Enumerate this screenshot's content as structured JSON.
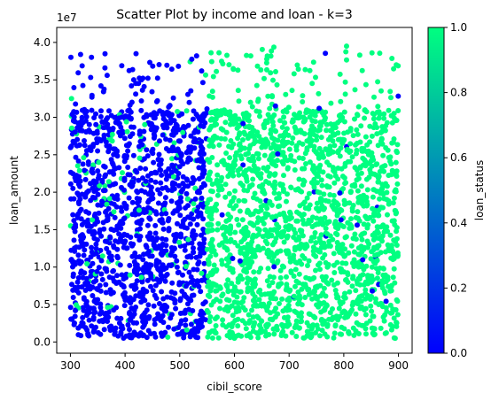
{
  "chart_data": {
    "type": "scatter",
    "title": "Scatter Plot by income and loan - k=3",
    "xlabel": "cibil_score",
    "ylabel": "loan_amount",
    "y_offset_text": "1e7",
    "colorbar_label": "loan_status",
    "xlim": [
      275,
      925
    ],
    "ylim": [
      -0.15,
      4.2
    ],
    "x_ticks": [
      300,
      400,
      500,
      600,
      700,
      800,
      900
    ],
    "y_ticks": [
      0.0,
      0.5,
      1.0,
      1.5,
      2.0,
      2.5,
      3.0,
      3.5,
      4.0
    ],
    "y_tick_labels": [
      "0.0",
      "0.5",
      "1.0",
      "1.5",
      "2.0",
      "2.5",
      "3.0",
      "3.5",
      "4.0"
    ],
    "colorbar_ticks": [
      "0.0",
      "0.2",
      "0.4",
      "0.6",
      "0.8",
      "1.0"
    ],
    "colormap": {
      "low": "#0000ff",
      "high": "#00ff80",
      "name": "winter"
    },
    "clusters": [
      {
        "loan_status": 0,
        "x_range": [
          300,
          550
        ],
        "y_range": [
          0.05,
          3.85
        ],
        "approx_points": 1400
      },
      {
        "loan_status": 1,
        "x_range": [
          550,
          900
        ],
        "y_range": [
          0.05,
          3.95
        ],
        "approx_points": 1900
      }
    ],
    "sample_points": [
      {
        "x": 301,
        "y": 3.8,
        "loan_status": 0
      },
      {
        "x": 420,
        "y": 3.85,
        "loan_status": 0
      },
      {
        "x": 540,
        "y": 3.62,
        "loan_status": 0
      },
      {
        "x": 675,
        "y": 3.15,
        "loan_status": 0
      },
      {
        "x": 755,
        "y": 3.12,
        "loan_status": 0
      },
      {
        "x": 795,
        "y": 1.63,
        "loan_status": 0
      },
      {
        "x": 852,
        "y": 0.68,
        "loan_status": 0
      },
      {
        "x": 805,
        "y": 3.95,
        "loan_status": 1
      },
      {
        "x": 302,
        "y": 3.25,
        "loan_status": 1
      },
      {
        "x": 896,
        "y": 3.7,
        "loan_status": 1
      },
      {
        "x": 600,
        "y": 0.05,
        "loan_status": 1
      }
    ]
  }
}
